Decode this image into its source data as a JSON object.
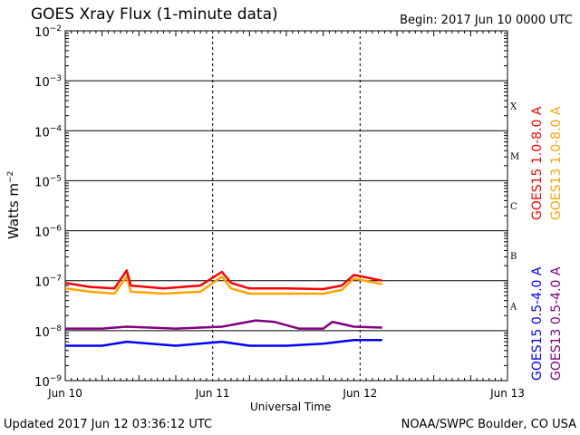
{
  "title": "GOES Xray Flux (1-minute data)",
  "begin": "Begin:  2017 Jun 10 0000 UTC",
  "updated": "Updated 2017 Jun 12 03:36:12 UTC",
  "credit": "NOAA/SWPC Boulder, CO USA",
  "chart_data": {
    "type": "line",
    "title": "GOES Xray Flux (1-minute data)",
    "xlabel": "Universal Time",
    "ylabel": "Watts m^-2",
    "y_scale": "log",
    "ylim": [
      1e-09,
      0.01
    ],
    "xlim": [
      "2017-06-10 00:00",
      "2017-06-13 00:00"
    ],
    "x_ticks": [
      "Jun 10",
      "Jun 11",
      "Jun 12",
      "Jun 13"
    ],
    "y_ticks": [
      "10^-9",
      "10^-8",
      "10^-7",
      "10^-6",
      "10^-5",
      "10^-4",
      "10^-3",
      "10^-2"
    ],
    "flare_classes": [
      "A",
      "B",
      "C",
      "M",
      "X"
    ],
    "grid": "horizontal lines at each decade",
    "legend_position": "right, vertical",
    "series": [
      {
        "name": "GOES15 1.0-8.0 A",
        "color": "#ff0000",
        "points": [
          [
            "2017-06-10 00:00",
            9e-08
          ],
          [
            "2017-06-10 04:00",
            7.5e-08
          ],
          [
            "2017-06-10 08:00",
            7e-08
          ],
          [
            "2017-06-10 10:00",
            1.6e-07
          ],
          [
            "2017-06-10 10:40",
            8e-08
          ],
          [
            "2017-06-10 16:00",
            7e-08
          ],
          [
            "2017-06-10 22:00",
            8e-08
          ],
          [
            "2017-06-11 01:30",
            1.5e-07
          ],
          [
            "2017-06-11 03:00",
            9e-08
          ],
          [
            "2017-06-11 06:00",
            7e-08
          ],
          [
            "2017-06-11 12:00",
            7e-08
          ],
          [
            "2017-06-11 18:00",
            6.8e-08
          ],
          [
            "2017-06-11 21:00",
            8e-08
          ],
          [
            "2017-06-11 23:00",
            1.3e-07
          ],
          [
            "2017-06-12 03:36",
            1e-07
          ]
        ]
      },
      {
        "name": "GOES13 1.0-8.0 A",
        "color": "#ffa500",
        "points": [
          [
            "2017-06-10 00:00",
            7e-08
          ],
          [
            "2017-06-10 04:00",
            6e-08
          ],
          [
            "2017-06-10 08:00",
            5.5e-08
          ],
          [
            "2017-06-10 10:00",
            1.2e-07
          ],
          [
            "2017-06-10 10:40",
            6e-08
          ],
          [
            "2017-06-10 16:00",
            5.5e-08
          ],
          [
            "2017-06-10 22:00",
            6e-08
          ],
          [
            "2017-06-11 01:30",
            1.2e-07
          ],
          [
            "2017-06-11 03:00",
            7e-08
          ],
          [
            "2017-06-11 06:00",
            5.5e-08
          ],
          [
            "2017-06-11 12:00",
            5.5e-08
          ],
          [
            "2017-06-11 18:00",
            5.5e-08
          ],
          [
            "2017-06-11 21:00",
            6.5e-08
          ],
          [
            "2017-06-11 23:00",
            1.1e-07
          ],
          [
            "2017-06-12 03:36",
            8.5e-08
          ]
        ]
      },
      {
        "name": "GOES15 0.5-4.0 A",
        "color": "#0000ff",
        "points": [
          [
            "2017-06-10 00:00",
            5e-09
          ],
          [
            "2017-06-10 06:00",
            5e-09
          ],
          [
            "2017-06-10 10:00",
            6e-09
          ],
          [
            "2017-06-10 18:00",
            5e-09
          ],
          [
            "2017-06-11 01:30",
            6e-09
          ],
          [
            "2017-06-11 06:00",
            5e-09
          ],
          [
            "2017-06-11 12:00",
            5e-09
          ],
          [
            "2017-06-11 18:00",
            5.5e-09
          ],
          [
            "2017-06-11 23:00",
            6.5e-09
          ],
          [
            "2017-06-12 03:36",
            6.5e-09
          ]
        ]
      },
      {
        "name": "GOES13 0.5-4.0 A",
        "color": "#800080",
        "points": [
          [
            "2017-06-10 00:00",
            1.1e-08
          ],
          [
            "2017-06-10 06:00",
            1.1e-08
          ],
          [
            "2017-06-10 10:00",
            1.2e-08
          ],
          [
            "2017-06-10 18:00",
            1.1e-08
          ],
          [
            "2017-06-11 01:30",
            1.2e-08
          ],
          [
            "2017-06-11 07:00",
            1.6e-08
          ],
          [
            "2017-06-11 10:00",
            1.5e-08
          ],
          [
            "2017-06-11 14:00",
            1.1e-08
          ],
          [
            "2017-06-11 18:00",
            1.1e-08
          ],
          [
            "2017-06-11 19:30",
            1.5e-08
          ],
          [
            "2017-06-11 23:00",
            1.2e-08
          ],
          [
            "2017-06-12 03:36",
            1.15e-08
          ]
        ]
      }
    ]
  }
}
